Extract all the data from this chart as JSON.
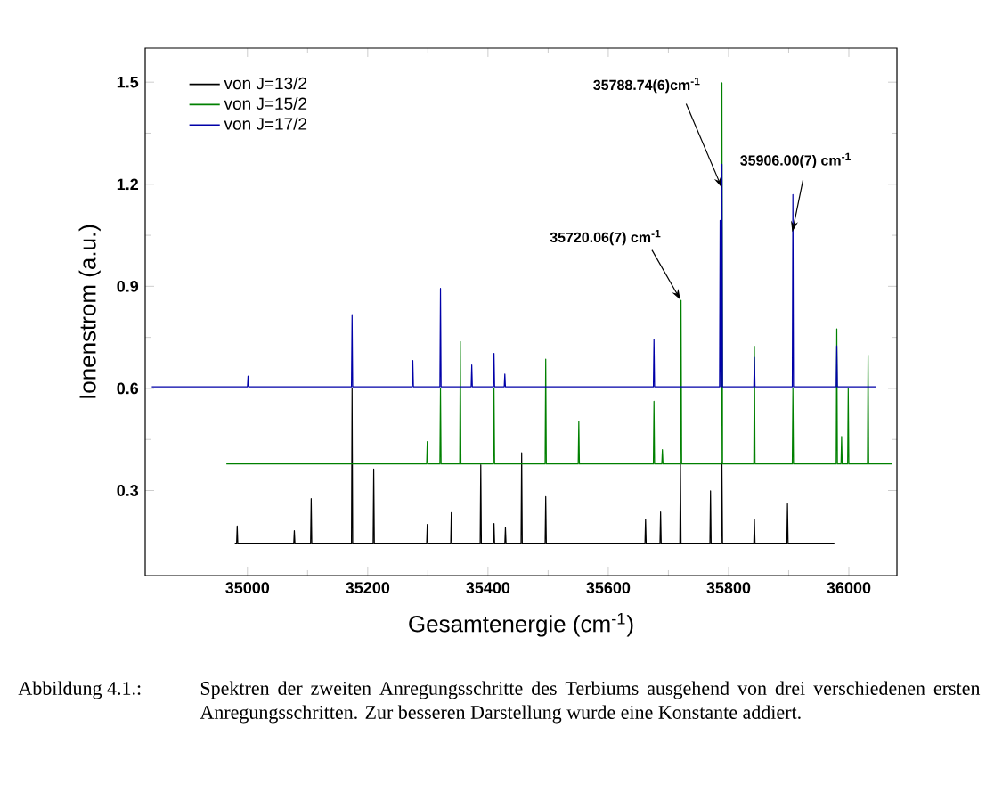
{
  "chart_data": {
    "type": "line",
    "xlabel": "Gesamtenergie (cm$^{-1}$)",
    "ylabel": "Ionenstrom (a.u.)",
    "xlim": [
      34830,
      36080
    ],
    "ylim": [
      0.05,
      1.6
    ],
    "xticks": [
      35000,
      35200,
      35400,
      35600,
      35800,
      36000
    ],
    "yticks": [
      0.3,
      0.6,
      0.9,
      1.2,
      1.5
    ],
    "legend": "top left",
    "marker": "none",
    "line_style": "solid",
    "series": [
      {
        "name": "von J=13/2",
        "color": "#000000",
        "x": [
          34979,
          34982,
          34983,
          34984,
          35077,
          35078,
          35079,
          35105,
          35106,
          35107,
          35173,
          35174,
          35175,
          35209,
          35210,
          35211,
          35298,
          35299,
          35300,
          35338,
          35339,
          35340,
          35387,
          35388,
          35389,
          35409,
          35410,
          35411,
          35428,
          35429,
          35430,
          35455,
          35456,
          35457,
          35495,
          35496,
          35497,
          35661,
          35662,
          35663,
          35686,
          35687,
          35688,
          35719,
          35720,
          35721,
          35769,
          35770,
          35771,
          35788,
          35789,
          35790,
          35842,
          35843,
          35844,
          35897,
          35898,
          35899,
          35976
        ],
        "values": [
          0.145,
          0.145,
          0.196,
          0.145,
          0.145,
          0.182,
          0.145,
          0.145,
          0.276,
          0.145,
          0.145,
          0.6,
          0.145,
          0.145,
          0.363,
          0.145,
          0.145,
          0.2,
          0.145,
          0.145,
          0.235,
          0.145,
          0.145,
          0.376,
          0.145,
          0.145,
          0.203,
          0.145,
          0.145,
          0.191,
          0.145,
          0.145,
          0.411,
          0.145,
          0.145,
          0.282,
          0.145,
          0.145,
          0.216,
          0.145,
          0.145,
          0.237,
          0.145,
          0.145,
          0.38,
          0.145,
          0.145,
          0.299,
          0.145,
          0.145,
          0.38,
          0.145,
          0.145,
          0.215,
          0.145,
          0.145,
          0.261,
          0.145,
          0.145
        ]
      },
      {
        "name": "von J=15/2",
        "color": "#008000",
        "x": [
          34965,
          35298,
          35299,
          35300,
          35320,
          35321,
          35322,
          35353,
          35354,
          35355,
          35409,
          35410,
          35411,
          35495,
          35496,
          35497,
          35550,
          35551,
          35552,
          35675,
          35676,
          35677,
          35689,
          35690,
          35691,
          35720,
          35721,
          35722,
          35788,
          35789,
          35790,
          35842,
          35843,
          35844,
          35906,
          35907,
          35908,
          35979,
          35980,
          35981,
          35987,
          35988,
          35989,
          35998,
          35999,
          36000,
          36031,
          36032,
          36033,
          36072
        ],
        "values": [
          0.378,
          0.378,
          0.444,
          0.378,
          0.378,
          0.6,
          0.378,
          0.378,
          0.738,
          0.378,
          0.378,
          0.6,
          0.378,
          0.378,
          0.686,
          0.378,
          0.378,
          0.503,
          0.378,
          0.378,
          0.562,
          0.378,
          0.378,
          0.42,
          0.378,
          0.378,
          0.859,
          0.378,
          0.378,
          1.498,
          0.378,
          0.378,
          0.724,
          0.378,
          0.378,
          0.6,
          0.378,
          0.378,
          0.775,
          0.378,
          0.378,
          0.459,
          0.378,
          0.378,
          0.6,
          0.378,
          0.378,
          0.698,
          0.378,
          0.378
        ]
      },
      {
        "name": "von J=17/2",
        "color": "#0000a8",
        "x": [
          34841,
          35000,
          35001,
          35002,
          35173,
          35174,
          35175,
          35274,
          35275,
          35276,
          35320,
          35321,
          35322,
          35372,
          35373,
          35374,
          35409,
          35410,
          35411,
          35427,
          35428,
          35429,
          35675,
          35676,
          35677,
          35785,
          35786,
          35787,
          35788,
          35789,
          35790,
          35842,
          35843,
          35844,
          35906,
          35907,
          35908,
          35979,
          35980,
          35981,
          36045
        ],
        "values": [
          0.605,
          0.605,
          0.636,
          0.605,
          0.605,
          0.817,
          0.605,
          0.605,
          0.682,
          0.605,
          0.605,
          0.894,
          0.605,
          0.605,
          0.669,
          0.605,
          0.605,
          0.703,
          0.605,
          0.605,
          0.642,
          0.605,
          0.605,
          0.745,
          0.605,
          0.605,
          1.094,
          0.605,
          0.605,
          1.259,
          0.605,
          0.605,
          0.691,
          0.605,
          0.605,
          1.17,
          0.605,
          0.605,
          0.725,
          0.605,
          0.605
        ]
      }
    ],
    "annotations": [
      {
        "text": "35720.06(7) cm$^{-1}$",
        "x": 35720.06,
        "y": 0.86
      },
      {
        "text": "35788.74(6)cm$^{-1}$",
        "x": 35788.74,
        "y": 1.19
      },
      {
        "text": "35906.00(7) cm$^{-1}$",
        "x": 35906.0,
        "y": 1.06
      },
      "Abbildung 4.1.:",
      "Spektren der zweiten Anregungsschritte des Terbiums ausgehend von drei verschiedenen ersten Anregungsschritten. Zur besseren Darstellung wurde eine Konstante addiert."
    ]
  }
}
